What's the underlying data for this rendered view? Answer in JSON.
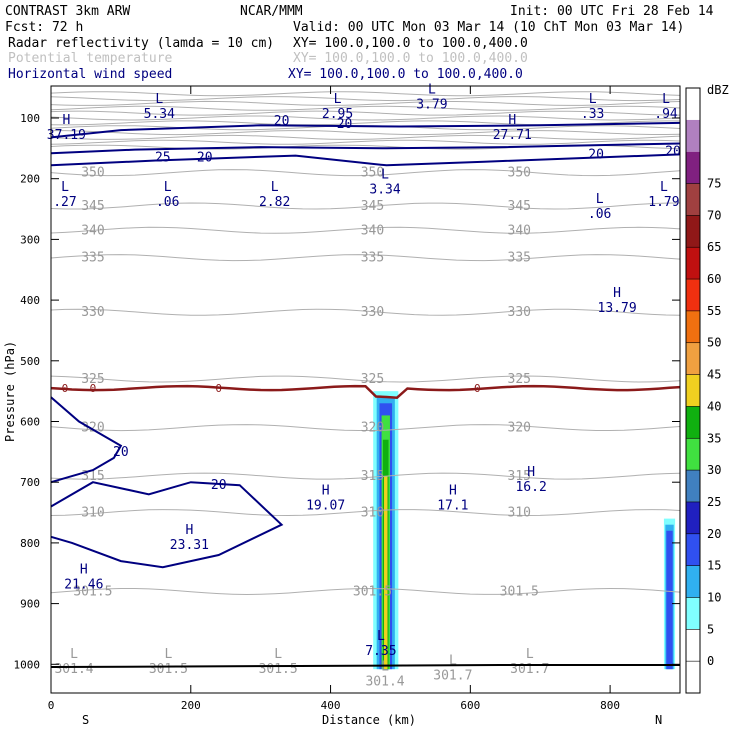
{
  "chart_data": {
    "type": "cross-section",
    "header": {
      "model": "CONTRAST  3km ARW",
      "center": "NCAR/MMM",
      "init": "Init: 00 UTC Fri 28 Feb 14",
      "fcst": "Fcst:   72 h",
      "valid": "Valid: 00 UTC Mon 03 Mar 14 (10 ChT Mon 03 Mar 14)",
      "fields": [
        {
          "name": "Radar reflectivity (lamda = 10 cm)",
          "xy": "XY= 100.0,100.0 to 100.0,400.0",
          "color": "#000000"
        },
        {
          "name": "Potential temperature",
          "xy": "XY= 100.0,100.0 to 100.0,400.0",
          "color": "#c0c0c0"
        },
        {
          "name": "Horizontal wind speed",
          "xy": "XY= 100.0,100.0 to 100.0,400.0",
          "color": "#000080"
        }
      ]
    },
    "xlabel": "Distance (km)",
    "ylabel": "Pressure (hPa)",
    "xlim": [
      0,
      900
    ],
    "ylim": [
      1045,
      50
    ],
    "x_ticks": [
      0,
      200,
      400,
      600,
      800
    ],
    "y_ticks": [
      100,
      200,
      300,
      400,
      500,
      600,
      700,
      800,
      900,
      1000
    ],
    "endpoints": {
      "left": "S",
      "right": "N"
    },
    "colorbar": {
      "unit": "dBZ",
      "levels": [
        "0",
        "5",
        "10",
        "15",
        "20",
        "25",
        "30",
        "35",
        "40",
        "45",
        "50",
        "55",
        "60",
        "65",
        "70",
        "75"
      ],
      "colors": [
        "#ffffff",
        "#ffffff",
        "#80ffff",
        "#30b0f0",
        "#3050f0",
        "#2020c0",
        "#4080c0",
        "#40e040",
        "#10b010",
        "#f0d020",
        "#f0a040",
        "#f07010",
        "#f03010",
        "#c01010",
        "#901818",
        "#a04040",
        "#802080",
        "#b080c0",
        "#ffffff"
      ]
    },
    "theta_contours": [
      "350",
      "345",
      "340",
      "335",
      "330",
      "325",
      "320",
      "315",
      "310",
      "301.5"
    ],
    "wind_labels": [
      "20",
      "25",
      "20",
      "20",
      "20",
      "20",
      "20",
      "20"
    ],
    "freezing_level": "0",
    "hl_markers": [
      {
        "type": "H",
        "value": "37.19",
        "x": 22,
        "p": 110
      },
      {
        "type": "L",
        "value": "5.34",
        "x": 155,
        "p": 75
      },
      {
        "type": "L",
        "value": "2.95",
        "x": 410,
        "p": 75
      },
      {
        "type": "L",
        "value": "3.79",
        "x": 545,
        "p": 60
      },
      {
        "type": "H",
        "value": "27.71",
        "x": 660,
        "p": 110
      },
      {
        "type": "L",
        "value": ".33",
        "x": 775,
        "p": 75
      },
      {
        "type": "L",
        "value": ".94",
        "x": 880,
        "p": 75
      },
      {
        "type": "L",
        "value": ".27",
        "x": 20,
        "p": 220
      },
      {
        "type": "L",
        "value": ".06",
        "x": 167,
        "p": 220
      },
      {
        "type": "L",
        "value": "2.82",
        "x": 320,
        "p": 220
      },
      {
        "type": "L",
        "value": "3.34",
        "x": 478,
        "p": 200
      },
      {
        "type": "L",
        "value": ".06",
        "x": 785,
        "p": 240
      },
      {
        "type": "L",
        "value": "1.79",
        "x": 877,
        "p": 220
      },
      {
        "type": "H",
        "value": "13.79",
        "x": 810,
        "p": 395
      },
      {
        "type": "H",
        "value": "16.2",
        "x": 687,
        "p": 690
      },
      {
        "type": "H",
        "value": "17.1",
        "x": 575,
        "p": 720
      },
      {
        "type": "H",
        "value": "19.07",
        "x": 393,
        "p": 720
      },
      {
        "type": "H",
        "value": "23.31",
        "x": 198,
        "p": 785
      },
      {
        "type": "H",
        "value": "21.46",
        "x": 47,
        "p": 850
      },
      {
        "type": "L",
        "value": "7.35",
        "x": 472,
        "p": 960
      },
      {
        "type": "L",
        "value": "301.4",
        "x": 33,
        "p": 990
      },
      {
        "type": "L",
        "value": "301.5",
        "x": 168,
        "p": 990
      },
      {
        "type": "L",
        "value": "301.5",
        "x": 325,
        "p": 990
      },
      {
        "type": "L",
        "value": "301.4",
        "x": 478,
        "p": 1010
      },
      {
        "type": "L",
        "value": "301.7",
        "x": 575,
        "p": 1000
      },
      {
        "type": "L",
        "value": "301.7",
        "x": 685,
        "p": 990
      }
    ],
    "reflectivity_cells": [
      {
        "x_center": 479,
        "top_p": 550,
        "core_dbz": "35"
      },
      {
        "x_center": 885,
        "top_p": 760,
        "core_dbz": "15"
      }
    ]
  }
}
